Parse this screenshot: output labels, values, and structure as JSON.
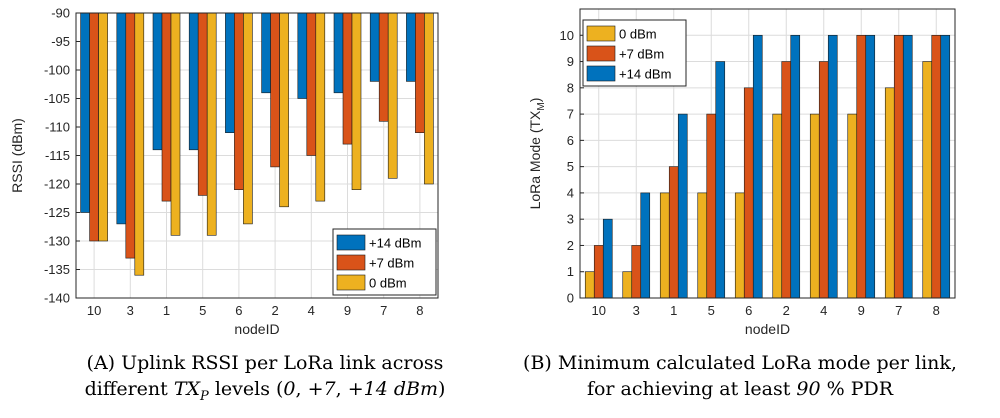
{
  "colors": {
    "c14": "#0072BD",
    "c7": "#D95319",
    "c0": "#EDB120"
  },
  "captions": {
    "a_line1": "(A) Uplink RSSI per LoRa link across",
    "a_line2": "different TXP levels (0, +7, +14 dBm)",
    "b_line1": "(B) Minimum calculated LoRa mode per link,",
    "b_line2": "for achieving at least 90 % PDR"
  },
  "chart_data": [
    {
      "type": "bar",
      "categories": [
        "10",
        "3",
        "1",
        "5",
        "6",
        "2",
        "4",
        "9",
        "7",
        "8"
      ],
      "xlabel": "nodeID",
      "ylabel": "RSSI (dBm)",
      "ylim": [
        -140,
        -90
      ],
      "yticks": [
        -90,
        -95,
        -100,
        -105,
        -110,
        -115,
        -120,
        -125,
        -130,
        -135,
        -140
      ],
      "legend_position": "bottom-right",
      "grid": true,
      "series": [
        {
          "name": "+14 dBm",
          "color": "#0072BD",
          "values": [
            -125,
            -127,
            -114,
            -114,
            -111,
            -104,
            -105,
            -104,
            -102,
            -102
          ]
        },
        {
          "name": "+7 dBm",
          "color": "#D95319",
          "values": [
            -130,
            -133,
            -123,
            -122,
            -121,
            -117,
            -115,
            -113,
            -109,
            -111
          ]
        },
        {
          "name": "0 dBm",
          "color": "#EDB120",
          "values": [
            -130,
            -136,
            -129,
            -129,
            -127,
            -124,
            -123,
            -121,
            -119,
            -120
          ]
        }
      ]
    },
    {
      "type": "bar",
      "categories": [
        "10",
        "3",
        "1",
        "5",
        "6",
        "2",
        "4",
        "9",
        "7",
        "8"
      ],
      "xlabel": "nodeID",
      "ylabel": "LoRa Mode (TX",
      "ylabel_sub": "M",
      "ylabel_end": ")",
      "ylim": [
        0,
        11
      ],
      "yticks": [
        0,
        1,
        2,
        3,
        4,
        5,
        6,
        7,
        8,
        9,
        10
      ],
      "legend_position": "top-left",
      "grid": true,
      "series": [
        {
          "name": "0 dBm",
          "color": "#EDB120",
          "values": [
            1,
            1,
            4,
            4,
            4,
            7,
            7,
            7,
            8,
            9
          ]
        },
        {
          "name": "+7 dBm",
          "color": "#D95319",
          "values": [
            2,
            2,
            5,
            7,
            8,
            9,
            9,
            10,
            10,
            10
          ]
        },
        {
          "name": "+14 dBm",
          "color": "#0072BD",
          "values": [
            3,
            4,
            7,
            9,
            10,
            10,
            10,
            10,
            10,
            10
          ]
        }
      ]
    }
  ]
}
